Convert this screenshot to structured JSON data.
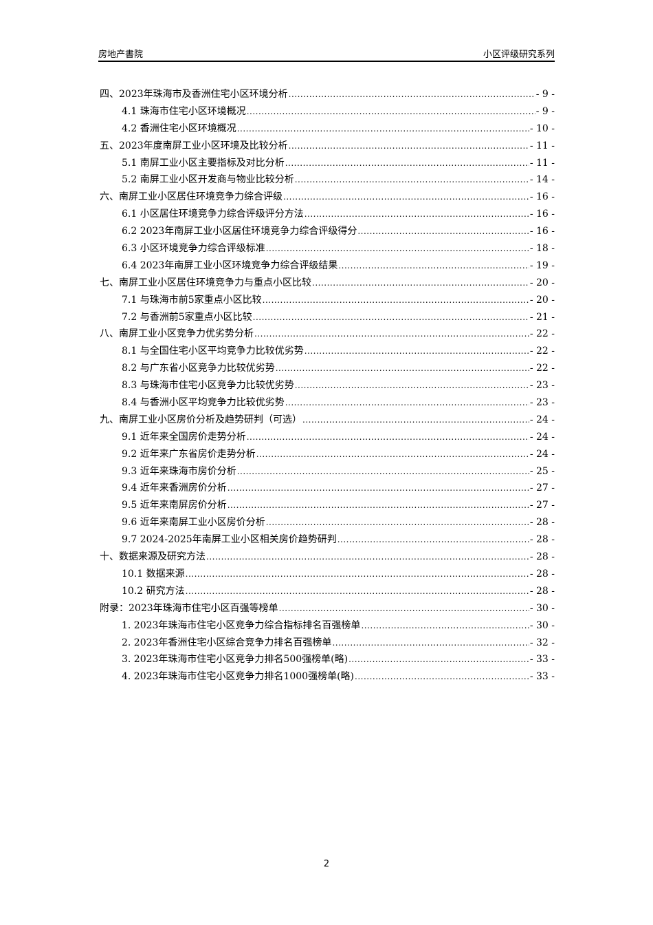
{
  "header": {
    "left": "房地产書院",
    "right": "小区评级研究系列"
  },
  "toc": [
    {
      "level": 1,
      "title": "四、2023年珠海市及香洲住宅小区环境分析",
      "page": "- 9 -"
    },
    {
      "level": 2,
      "title": "4.1 珠海市住宅小区环境概况",
      "page": "- 9 -"
    },
    {
      "level": 2,
      "title": "4.2 香洲住宅小区环境概况",
      "page": "- 10 -"
    },
    {
      "level": 1,
      "title": "五、2023年度南屏工业小区环境及比较分析",
      "page": "- 11 -"
    },
    {
      "level": 2,
      "title": "5.1 南屏工业小区主要指标及对比分析",
      "page": "- 11 -"
    },
    {
      "level": 2,
      "title": "5.2 南屏工业小区开发商与物业比较分析",
      "page": "- 14 -"
    },
    {
      "level": 1,
      "title": "六、南屏工业小区居住环境竞争力综合评级",
      "page": "- 16 -"
    },
    {
      "level": 2,
      "title": "6.1 小区居住环境竞争力综合评级评分方法",
      "page": "- 16 -"
    },
    {
      "level": 2,
      "title": "6.2 2023年南屏工业小区居住环境竞争力综合评级得分",
      "page": "- 16 -"
    },
    {
      "level": 2,
      "title": "6.3 小区环境竞争力综合评级标准",
      "page": "- 18 -"
    },
    {
      "level": 2,
      "title": "6.4 2023年南屏工业小区环境竞争力综合评级结果",
      "page": "- 19 -"
    },
    {
      "level": 1,
      "title": "七、南屏工业小区居住环境竞争力与重点小区比较",
      "page": "- 20 -"
    },
    {
      "level": 2,
      "title": "7.1 与珠海市前5家重点小区比较",
      "page": "- 20 -"
    },
    {
      "level": 2,
      "title": "7.2 与香洲前5家重点小区比较",
      "page": "- 21 -"
    },
    {
      "level": 1,
      "title": "八、南屏工业小区竞争力优劣势分析",
      "page": "- 22 -"
    },
    {
      "level": 2,
      "title": "8.1 与全国住宅小区平均竞争力比较优劣势",
      "page": "- 22 -"
    },
    {
      "level": 2,
      "title": "8.2 与广东省小区竞争力比较优劣势",
      "page": "- 22 -"
    },
    {
      "level": 2,
      "title": "8.3 与珠海市住宅小区竞争力比较优劣势",
      "page": "- 23 -"
    },
    {
      "level": 2,
      "title": "8.4 与香洲小区平均竞争力比较优劣势",
      "page": "- 23 -"
    },
    {
      "level": 1,
      "title": "九、南屏工业小区房价分析及趋势研判（可选）",
      "page": "- 24 -"
    },
    {
      "level": 2,
      "title": "9.1 近年来全国房价走势分析",
      "page": "- 24 -"
    },
    {
      "level": 2,
      "title": "9.2 近年来广东省房价走势分析",
      "page": "- 24 -"
    },
    {
      "level": 2,
      "title": "9.3 近年来珠海市房价分析",
      "page": "- 25 -"
    },
    {
      "level": 2,
      "title": "9.4 近年来香洲房价分析",
      "page": "- 27 -"
    },
    {
      "level": 2,
      "title": "9.5 近年来南屏房价分析",
      "page": "- 27 -"
    },
    {
      "level": 2,
      "title": "9.6 近年来南屏工业小区房价分析",
      "page": "- 28 -"
    },
    {
      "level": 2,
      "title": "9.7 2024-2025年南屏工业小区相关房价趋势研判",
      "page": "- 28 -"
    },
    {
      "level": 1,
      "title": "十、数据来源及研究方法",
      "page": "- 28 -"
    },
    {
      "level": 2,
      "title": "10.1 数据来源",
      "page": "- 28 -"
    },
    {
      "level": 2,
      "title": "10.2 研究方法",
      "page": "- 28 -"
    },
    {
      "level": 1,
      "title": "附录：2023年珠海市住宅小区百强等榜单",
      "page": "- 30 -"
    },
    {
      "level": 2,
      "title": "1. 2023年珠海市住宅小区竞争力综合指标排名百强榜单",
      "page": "- 30 -"
    },
    {
      "level": 2,
      "title": "2. 2023年香洲住宅小区综合竞争力排名百强榜单",
      "page": "- 32 -"
    },
    {
      "level": 2,
      "title": "3. 2023年珠海市住宅小区竞争力排名500强榜单(略)",
      "page": "- 33 -"
    },
    {
      "level": 2,
      "title": "4. 2023年珠海市住宅小区竞争力排名1000强榜单(略)",
      "page": "- 33 -"
    }
  ],
  "footer": {
    "page_number": "2"
  }
}
